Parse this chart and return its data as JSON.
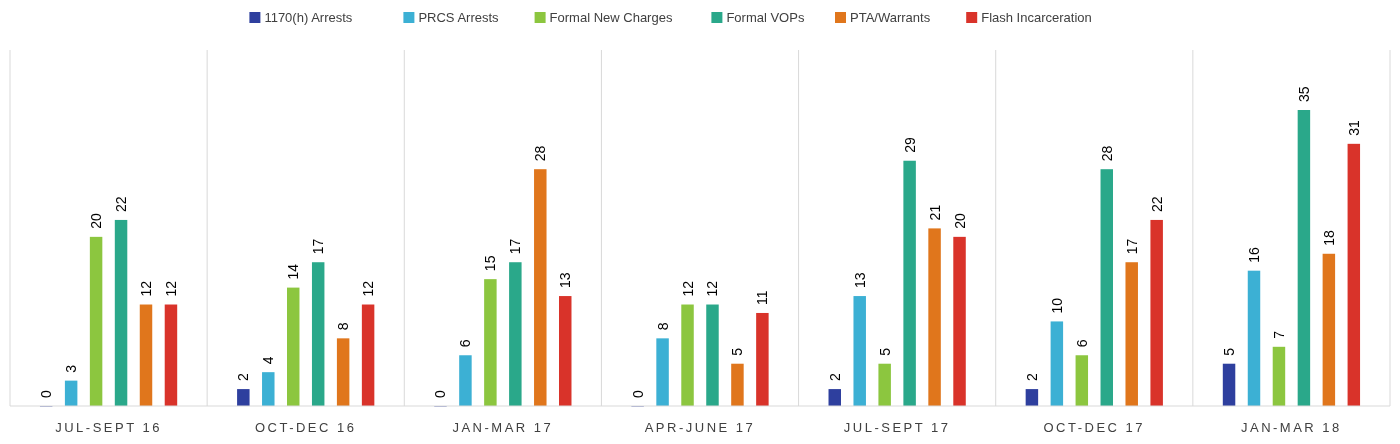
{
  "chart_data": {
    "type": "bar",
    "categories": [
      "JUL-SEPT 16",
      "OCT-DEC 16",
      "JAN-MAR 17",
      "APR-JUNE 17",
      "JUL-SEPT 17",
      "OCT-DEC 17",
      "JAN-MAR 18"
    ],
    "series": [
      {
        "name": "1170(h) Arrests",
        "color": "#2e3f9e",
        "values": [
          0,
          2,
          0,
          0,
          2,
          2,
          5
        ]
      },
      {
        "name": "PRCS Arrests",
        "color": "#3cb0d4",
        "values": [
          3,
          4,
          6,
          8,
          13,
          10,
          16
        ]
      },
      {
        "name": "Formal New Charges",
        "color": "#8cc63f",
        "values": [
          20,
          14,
          15,
          12,
          5,
          6,
          7
        ]
      },
      {
        "name": "Formal VOPs",
        "color": "#2aa88a",
        "values": [
          22,
          17,
          17,
          12,
          29,
          28,
          35
        ]
      },
      {
        "name": "PTA/Warrants",
        "color": "#e0761c",
        "values": [
          12,
          8,
          28,
          5,
          21,
          17,
          18
        ]
      },
      {
        "name": "Flash Incarceration",
        "color": "#d9332a",
        "values": [
          12,
          12,
          13,
          11,
          20,
          22,
          31
        ]
      }
    ],
    "data_labels": true,
    "grid": "x",
    "legend": "top"
  }
}
